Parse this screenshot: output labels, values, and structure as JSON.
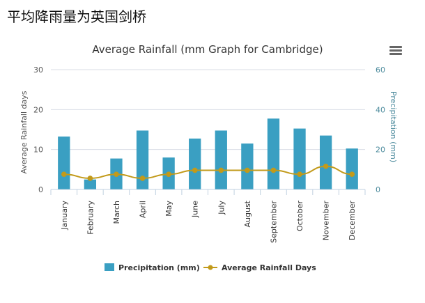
{
  "page": {
    "heading": "平均降雨量为英国剑桥"
  },
  "colors": {
    "bar": "#3a9fc2",
    "line": "#c29a1a",
    "axis_y_left": "#555555",
    "axis_y_right": "#4b8a9c",
    "grid": "#d8dde6"
  },
  "icons": {
    "menu": "hamburger-menu-icon"
  },
  "chart_data": {
    "type": "bar",
    "title": "Average Rainfall (mm Graph for Cambridge)",
    "categories": [
      "January",
      "February",
      "March",
      "April",
      "May",
      "June",
      "July",
      "August",
      "September",
      "October",
      "November",
      "December"
    ],
    "series": [
      {
        "name": "Precipitation (mm)",
        "type": "bar",
        "axis": "right",
        "values": [
          26.5,
          5,
          15.5,
          29.5,
          16,
          25.5,
          29.5,
          23,
          35.5,
          30.5,
          27,
          20.5
        ]
      },
      {
        "name": "Average Rainfall Days",
        "type": "line",
        "axis": "left",
        "values": [
          3.8,
          2.8,
          3.8,
          2.8,
          3.8,
          4.8,
          4.8,
          4.8,
          4.8,
          3.8,
          5.8,
          3.8
        ]
      }
    ],
    "y_left": {
      "label": "Average Rainfall days",
      "min": 0,
      "max": 30,
      "ticks": [
        0,
        10,
        20,
        30
      ]
    },
    "y_right": {
      "label": "Precipitation (mm)",
      "min": 0,
      "max": 60,
      "ticks": [
        0,
        20,
        40,
        60
      ]
    },
    "grid": true,
    "legend_position": "bottom"
  }
}
